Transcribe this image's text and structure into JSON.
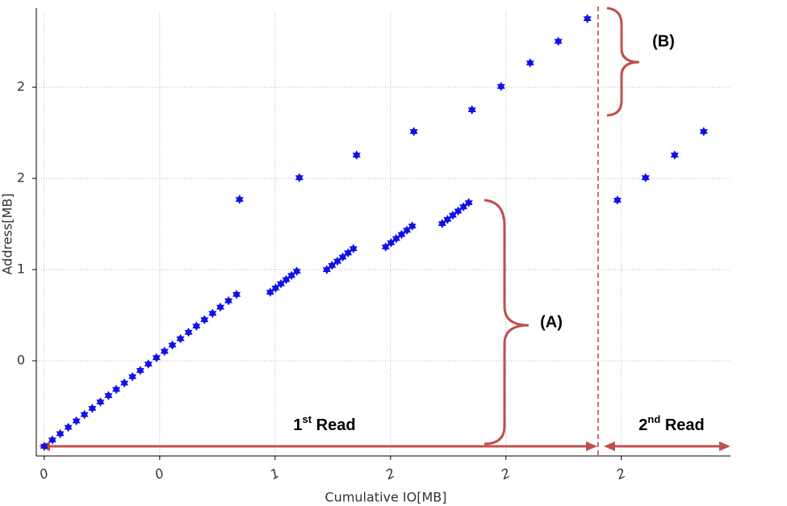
{
  "chart_data": {
    "type": "scatter",
    "x_label": "Cumulative IO[MB]",
    "y_label": "Address[MB]",
    "xlim": [
      -0.024,
      2.973
    ],
    "ylim": [
      -0.022,
      2.412
    ],
    "xticks": [
      {
        "value": 0,
        "label": "0"
      },
      {
        "value": 0.5,
        "label": "0"
      },
      {
        "value": 1,
        "label": "1"
      },
      {
        "value": 1.5,
        "label": "2"
      },
      {
        "value": 2,
        "label": "2"
      },
      {
        "value": 2.5,
        "label": "2"
      }
    ],
    "yticks": [
      {
        "value": 0.5,
        "label": "0"
      },
      {
        "value": 1,
        "label": "1"
      },
      {
        "value": 1.5,
        "label": "2"
      },
      {
        "value": 2,
        "label": "2"
      }
    ],
    "grid": true,
    "series": [
      {
        "color": "#1010e8",
        "x": [
          0,
          0.035,
          0.069,
          0.104,
          0.139,
          0.174,
          0.208,
          0.243,
          0.278,
          0.312,
          0.347,
          0.382,
          0.416,
          0.451,
          0.486,
          0.521,
          0.555,
          0.59,
          0.625,
          0.659,
          0.694,
          0.729,
          0.763,
          0.798,
          0.833,
          0.979,
          1.002,
          1.025,
          1.048,
          1.071,
          1.094,
          1.224,
          1.247,
          1.27,
          1.293,
          1.316,
          1.339,
          1.479,
          1.502,
          1.525,
          1.548,
          1.571,
          1.594,
          1.724,
          1.747,
          1.77,
          1.793,
          1.816,
          1.839,
          0.846,
          1.105,
          1.353,
          1.601,
          1.853,
          1.979,
          2.105,
          2.227,
          2.353,
          2.483,
          2.605,
          2.731,
          2.857
        ],
        "values": [
          0.031,
          0.066,
          0.1,
          0.135,
          0.17,
          0.205,
          0.239,
          0.274,
          0.309,
          0.343,
          0.378,
          0.413,
          0.447,
          0.482,
          0.517,
          0.552,
          0.586,
          0.621,
          0.656,
          0.69,
          0.725,
          0.76,
          0.794,
          0.829,
          0.864,
          0.876,
          0.899,
          0.922,
          0.945,
          0.968,
          0.991,
          1.0,
          1.023,
          1.046,
          1.069,
          1.092,
          1.115,
          1.124,
          1.147,
          1.17,
          1.193,
          1.216,
          1.239,
          1.252,
          1.275,
          1.298,
          1.321,
          1.344,
          1.367,
          1.385,
          1.504,
          1.628,
          1.757,
          1.876,
          2.004,
          2.133,
          2.252,
          2.376,
          1.381,
          1.504,
          1.628,
          1.757
        ]
      }
    ],
    "annotations": {
      "a": "(A)",
      "b": "(B)",
      "first_read": [
        "1",
        "st",
        " Read"
      ],
      "second_read": [
        "2",
        "nd",
        " Read"
      ]
    }
  }
}
